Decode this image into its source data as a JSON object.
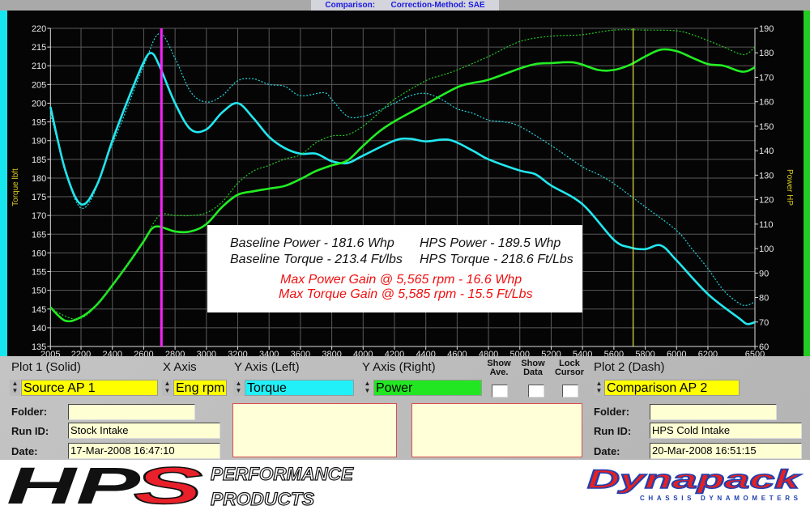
{
  "header": {
    "title": "Comparison:       Correction-Method: SAE"
  },
  "chart_data": {
    "type": "line",
    "xlabel": "",
    "ylabel_left": "Torque lbft",
    "ylabel_right": "Power HP",
    "xlim": [
      2005,
      6500
    ],
    "ylim_left": [
      135,
      220
    ],
    "ylim_right": [
      60,
      190
    ],
    "x_ticks": [
      "2005",
      "2200",
      "2400",
      "2600",
      "2800",
      "3000",
      "3200",
      "3400",
      "3600",
      "3800",
      "4000",
      "4200",
      "4400",
      "4600",
      "4800",
      "5000",
      "5200",
      "5400",
      "5600",
      "5800",
      "6000",
      "6200",
      "6500"
    ],
    "y_left_ticks": [
      220,
      215,
      210,
      205,
      200,
      195,
      190,
      185,
      180,
      175,
      170,
      165,
      160,
      155,
      150,
      145,
      140,
      135
    ],
    "y_right_ticks": [
      190,
      180,
      170,
      160,
      150,
      140,
      130,
      120,
      110,
      100,
      90,
      80,
      70,
      60
    ],
    "grid": true,
    "cursors": [
      {
        "rpm": 2713,
        "color": "#ff22ff"
      },
      {
        "rpm": 5723,
        "color": "#e8e040"
      }
    ],
    "series": [
      {
        "plot": "Plot 1 (Solid)",
        "quantity": "Torque",
        "axis": "left",
        "style": "solid",
        "color": "#22e8f0",
        "points": [
          [
            2005,
            199
          ],
          [
            2100,
            182
          ],
          [
            2200,
            173
          ],
          [
            2300,
            178
          ],
          [
            2400,
            190
          ],
          [
            2500,
            201
          ],
          [
            2600,
            211
          ],
          [
            2650,
            213.4
          ],
          [
            2700,
            210
          ],
          [
            2800,
            200
          ],
          [
            2900,
            193
          ],
          [
            3000,
            193
          ],
          [
            3100,
            197.5
          ],
          [
            3200,
            200
          ],
          [
            3300,
            196
          ],
          [
            3400,
            191
          ],
          [
            3500,
            188
          ],
          [
            3600,
            186.5
          ],
          [
            3700,
            186.5
          ],
          [
            3800,
            184.5
          ],
          [
            3900,
            184
          ],
          [
            4000,
            186
          ],
          [
            4200,
            190
          ],
          [
            4300,
            190.5
          ],
          [
            4400,
            189.8
          ],
          [
            4550,
            190.2
          ],
          [
            4700,
            187.3
          ],
          [
            4800,
            185
          ],
          [
            5000,
            182
          ],
          [
            5100,
            181
          ],
          [
            5200,
            178
          ],
          [
            5400,
            173
          ],
          [
            5600,
            163.5
          ],
          [
            5700,
            161.5
          ],
          [
            5800,
            161
          ],
          [
            5900,
            162
          ],
          [
            6000,
            158
          ],
          [
            6200,
            149
          ],
          [
            6400,
            142.5
          ],
          [
            6450,
            141
          ],
          [
            6500,
            141.5
          ]
        ]
      },
      {
        "plot": "Plot 2 (Dash)",
        "quantity": "Torque",
        "axis": "left",
        "style": "dash",
        "color": "#22d8e0",
        "points": [
          [
            2005,
            197
          ],
          [
            2200,
            172
          ],
          [
            2400,
            189
          ],
          [
            2600,
            210
          ],
          [
            2700,
            218.6
          ],
          [
            2800,
            212
          ],
          [
            2900,
            203
          ],
          [
            3000,
            200.3
          ],
          [
            3100,
            202
          ],
          [
            3200,
            206
          ],
          [
            3300,
            206.5
          ],
          [
            3400,
            205
          ],
          [
            3500,
            204.5
          ],
          [
            3600,
            202
          ],
          [
            3750,
            202.8
          ],
          [
            3800,
            201
          ],
          [
            3900,
            196.5
          ],
          [
            4000,
            196.5
          ],
          [
            4100,
            198
          ],
          [
            4200,
            200
          ],
          [
            4300,
            202
          ],
          [
            4400,
            202.6
          ],
          [
            4500,
            201
          ],
          [
            4600,
            198.5
          ],
          [
            4700,
            197.3
          ],
          [
            4800,
            195.5
          ],
          [
            4900,
            195
          ],
          [
            5000,
            193.8
          ],
          [
            5200,
            188.7
          ],
          [
            5400,
            183
          ],
          [
            5500,
            181
          ],
          [
            5600,
            178.5
          ],
          [
            5800,
            172.3
          ],
          [
            6000,
            166
          ],
          [
            6100,
            161
          ],
          [
            6200,
            155.8
          ],
          [
            6300,
            150
          ],
          [
            6400,
            146.5
          ],
          [
            6450,
            146
          ],
          [
            6500,
            147
          ]
        ]
      },
      {
        "plot": "Plot 1 (Solid)",
        "quantity": "Power",
        "axis": "right",
        "style": "solid",
        "color": "#22ee22",
        "points": [
          [
            2005,
            76
          ],
          [
            2100,
            70.5
          ],
          [
            2200,
            72
          ],
          [
            2300,
            77
          ],
          [
            2400,
            85
          ],
          [
            2500,
            93.7
          ],
          [
            2600,
            103
          ],
          [
            2650,
            108
          ],
          [
            2700,
            109
          ],
          [
            2800,
            107
          ],
          [
            2900,
            107
          ],
          [
            3000,
            110
          ],
          [
            3100,
            117
          ],
          [
            3200,
            122
          ],
          [
            3300,
            123.4
          ],
          [
            3400,
            124.5
          ],
          [
            3500,
            125.6
          ],
          [
            3600,
            128.4
          ],
          [
            3700,
            131.7
          ],
          [
            3800,
            134
          ],
          [
            3900,
            136
          ],
          [
            4000,
            142
          ],
          [
            4100,
            147.7
          ],
          [
            4200,
            152
          ],
          [
            4400,
            159
          ],
          [
            4600,
            165.9
          ],
          [
            4700,
            167.7
          ],
          [
            4800,
            169
          ],
          [
            5000,
            173.6
          ],
          [
            5100,
            175.4
          ],
          [
            5200,
            175.8
          ],
          [
            5350,
            176
          ],
          [
            5500,
            173
          ],
          [
            5600,
            173
          ],
          [
            5700,
            175
          ],
          [
            5800,
            178.5
          ],
          [
            5900,
            181.3
          ],
          [
            6000,
            180.7
          ],
          [
            6100,
            178
          ],
          [
            6200,
            175.4
          ],
          [
            6300,
            174.7
          ],
          [
            6400,
            172.5
          ],
          [
            6450,
            172.5
          ],
          [
            6500,
            174.1
          ]
        ]
      },
      {
        "plot": "Plot 2 (Dash)",
        "quantity": "Power",
        "axis": "right",
        "style": "dash",
        "color": "#22cc22",
        "points": [
          [
            2005,
            75.5
          ],
          [
            2200,
            71.5
          ],
          [
            2400,
            85
          ],
          [
            2600,
            103.5
          ],
          [
            2700,
            113.5
          ],
          [
            2800,
            113.5
          ],
          [
            2900,
            113.5
          ],
          [
            3000,
            114.6
          ],
          [
            3100,
            119
          ],
          [
            3200,
            126.7
          ],
          [
            3300,
            131.7
          ],
          [
            3400,
            134
          ],
          [
            3500,
            136.6
          ],
          [
            3600,
            138.3
          ],
          [
            3700,
            143.3
          ],
          [
            3800,
            146
          ],
          [
            3900,
            146.5
          ],
          [
            4000,
            150
          ],
          [
            4100,
            155.4
          ],
          [
            4200,
            161
          ],
          [
            4400,
            168.6
          ],
          [
            4500,
            170.8
          ],
          [
            4600,
            173
          ],
          [
            4800,
            178.5
          ],
          [
            5000,
            184.6
          ],
          [
            5200,
            186.8
          ],
          [
            5400,
            187.4
          ],
          [
            5600,
            189.3
          ],
          [
            5800,
            189.3
          ],
          [
            6000,
            189
          ],
          [
            6100,
            187.4
          ],
          [
            6200,
            185
          ],
          [
            6300,
            182.4
          ],
          [
            6400,
            179.6
          ],
          [
            6450,
            179.6
          ],
          [
            6500,
            182.4
          ]
        ]
      }
    ],
    "annotations": {
      "baseline_power": "Baseline Power - 181.6 Whp",
      "baseline_torque": "Baseline Torque - 213.4 Ft/lbs",
      "hps_power": "HPS Power - 189.5 Whp",
      "hps_torque": "HPS Torque - 218.6 Ft/Lbs",
      "max_power_gain": "Max Power Gain @ 5,565 rpm - 16.6 Whp",
      "max_torque_gain": "Max Torque Gain @ 5,585 rpm - 15.5 Ft/Lbs"
    }
  },
  "panel": {
    "plot1_label": "Plot 1 (Solid)",
    "xaxis_label": "X Axis",
    "yleft_label": "Y Axis (Left)",
    "yright_label": "Y Axis (Right)",
    "show_ave": "Show Ave.",
    "show_data": "Show Data",
    "lock_cursor": "Lock Cursor",
    "plot2_label": "Plot 2 (Dash)",
    "plot1_value": "Source AP 1",
    "xaxis_value": "Eng rpm",
    "yleft_value": "Torque",
    "yright_value": "Power",
    "plot2_value": "Comparison AP 2",
    "colors": {
      "yellow": "#ffff00",
      "cyan": "#22f0f8",
      "green": "#22e622"
    },
    "folder_label": "Folder:",
    "runid_label": "Run ID:",
    "date_label": "Date:",
    "plot1": {
      "folder": "",
      "run_id": "Stock Intake",
      "date": "17-Mar-2008  16:47:10"
    },
    "plot2": {
      "folder": "",
      "run_id": "HPS Cold Intake",
      "date": "20-Mar-2008  16:51:15"
    }
  },
  "logos": {
    "hps": "HPS",
    "hps_sub1": "PERFORMANCE",
    "hps_sub2": "PRODUCTS",
    "dynapack": "Dynapack",
    "dynapack_sub": "CHASSIS DYNAMOMETERS"
  }
}
